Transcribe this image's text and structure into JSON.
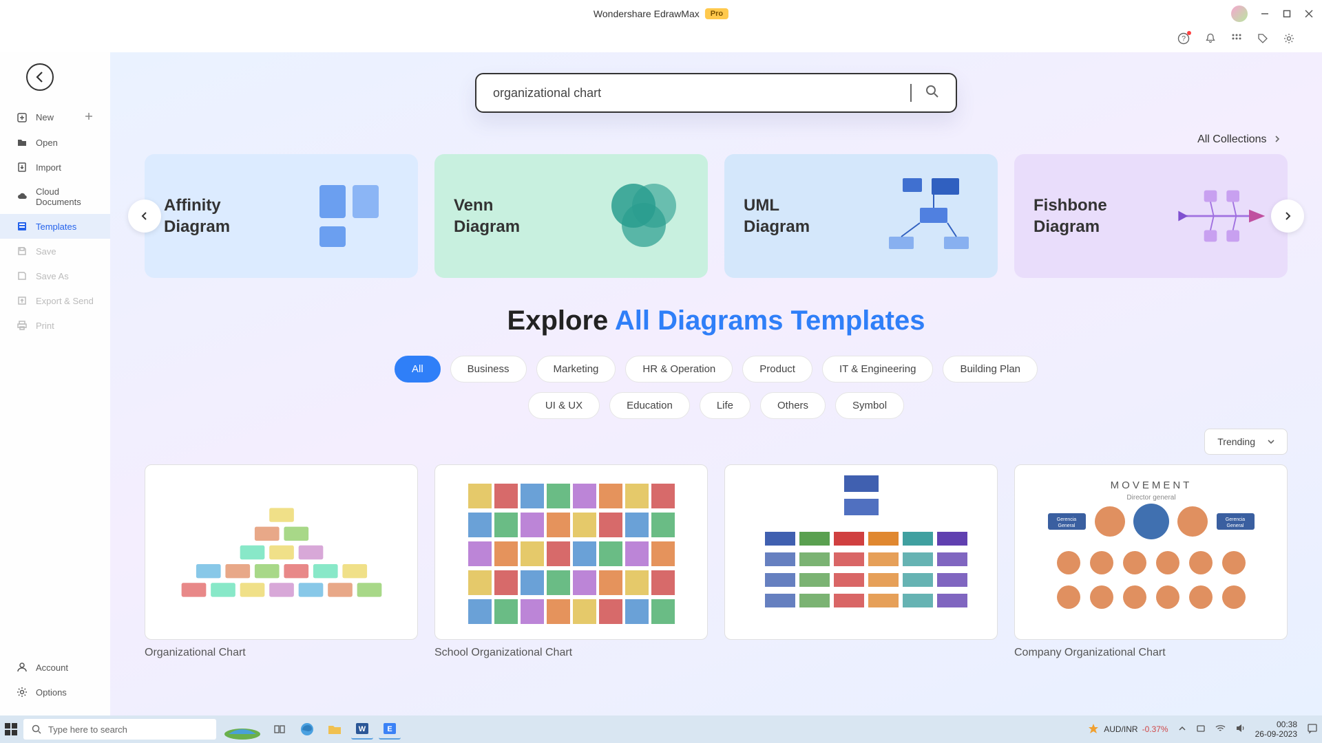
{
  "title": {
    "app": "Wondershare EdrawMax",
    "badge": "Pro"
  },
  "sidebar": {
    "items": [
      {
        "label": "New",
        "icon": "plus-square",
        "hasAdd": true
      },
      {
        "label": "Open",
        "icon": "folder"
      },
      {
        "label": "Import",
        "icon": "import"
      },
      {
        "label": "Cloud Documents",
        "icon": "cloud"
      },
      {
        "label": "Templates",
        "icon": "templates",
        "active": true
      },
      {
        "label": "Save",
        "icon": "save",
        "disabled": true
      },
      {
        "label": "Save As",
        "icon": "save-as",
        "disabled": true
      },
      {
        "label": "Export & Send",
        "icon": "export",
        "disabled": true
      },
      {
        "label": "Print",
        "icon": "print",
        "disabled": true
      }
    ],
    "bottom": [
      {
        "label": "Account",
        "icon": "user"
      },
      {
        "label": "Options",
        "icon": "gear"
      }
    ]
  },
  "search": {
    "value": "organizational chart"
  },
  "allCollections": "All Collections",
  "carousel": [
    {
      "title": "Affinity\nDiagram",
      "bg": "#dcebff",
      "graphic": "affinity"
    },
    {
      "title": "Venn\nDiagram",
      "bg": "#c8f0df",
      "graphic": "venn"
    },
    {
      "title": "UML\nDiagram",
      "bg": "#d4e7fb",
      "graphic": "uml"
    },
    {
      "title": "Fishbone\nDiagram",
      "bg": "#e9ddfb",
      "graphic": "fishbone"
    }
  ],
  "explore": {
    "prefix": "Explore ",
    "highlight": "All Diagrams Templates"
  },
  "filters": {
    "row1": [
      "All",
      "Business",
      "Marketing",
      "HR & Operation",
      "Product",
      "IT & Engineering",
      "Building Plan"
    ],
    "row2": [
      "UI & UX",
      "Education",
      "Life",
      "Others",
      "Symbol"
    ],
    "active": "All"
  },
  "sort": {
    "label": "Trending"
  },
  "templates": [
    {
      "name": "Organizational Chart",
      "thumb": "org1"
    },
    {
      "name": "School Organizational Chart",
      "thumb": "org2"
    },
    {
      "name": "",
      "thumb": "org3"
    },
    {
      "name": "Company Organizational Chart",
      "thumb": "org4"
    }
  ],
  "taskbar": {
    "searchPlaceholder": "Type here to search",
    "stock": {
      "pair": "AUD/INR",
      "change": "-0.37%"
    },
    "time": "00:38",
    "date": "26-09-2023"
  },
  "thumbColors": {
    "org1": [
      "#f0e088",
      "#d8a8d8",
      "#88c8e8",
      "#e8a888",
      "#a8d888",
      "#e88888",
      "#88e8c8"
    ],
    "org3": [
      "#4060b0",
      "#5aa050",
      "#d04040",
      "#e08830",
      "#40a0a0",
      "#6040b0"
    ]
  }
}
